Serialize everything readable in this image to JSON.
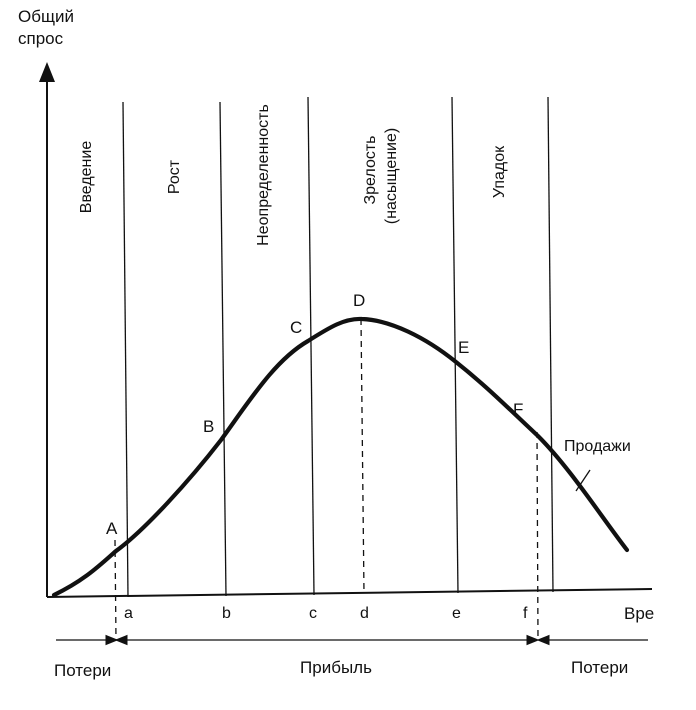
{
  "y_axis_label": [
    "Общий",
    "спрос"
  ],
  "x_axis_label": "Вре",
  "stages": [
    {
      "name": [
        "Введение"
      ]
    },
    {
      "name": [
        "Рост"
      ]
    },
    {
      "name": [
        "Неопределенность"
      ]
    },
    {
      "name": [
        "Зрелость",
        "(насыщение)"
      ]
    },
    {
      "name": [
        "Упадок"
      ]
    }
  ],
  "curve_points": [
    "A",
    "B",
    "C",
    "D",
    "E",
    "F"
  ],
  "axis_ticks": [
    "a",
    "b",
    "c",
    "d",
    "e",
    "f"
  ],
  "sales_label": "Продажи",
  "profit_zones": {
    "left_loss": "Потери",
    "profit": "Прибыль",
    "right_loss": "Потери"
  }
}
